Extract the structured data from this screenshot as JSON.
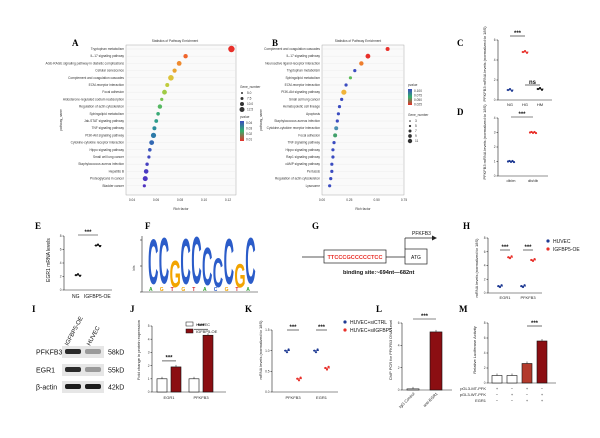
{
  "panels": {
    "A": {
      "label": "A",
      "title": "Statistics of Pathway Enrichment",
      "xlabel": "Rich factor",
      "ylabel": "pathway_name",
      "pathways": [
        "Tryptophan metabolism",
        "IL-17 signaling pathway",
        "AGE-RAGE signaling pathway in diabetic complications",
        "Cellular senescence",
        "Complement and coagulation cascades",
        "ECM-receptor interaction",
        "Focal adhesion",
        "Aldosterone-regulated sodium reabsorption",
        "Regulation of actin cytoskeleton",
        "Sphingolipid metabolism",
        "Jak-STAT signaling pathway",
        "TNF signaling pathway",
        "PI3K-Akt signaling pathway",
        "Cytokine-cytokine receptor interaction",
        "Hippo signaling pathway",
        "Small cell lung cancer",
        "Staphylococcus aureus infection",
        "Hepatitis B",
        "Proteoglycans in cancer",
        "Bladder cancer"
      ],
      "rich": [
        0.145,
        0.095,
        0.088,
        0.083,
        0.079,
        0.075,
        0.072,
        0.069,
        0.067,
        0.065,
        0.063,
        0.061,
        0.06,
        0.058,
        0.056,
        0.055,
        0.053,
        0.052,
        0.051,
        0.05
      ],
      "xticks": [
        "0.04",
        "0.06",
        "0.08",
        "0.10",
        "0.12"
      ],
      "legend_gene_title": "Gene_number",
      "legend_gene": [
        "5.0",
        "7.5",
        "10.0",
        "12.5"
      ],
      "legend_p_title": "pvalue",
      "legend_p": [
        "0.04",
        "0.03",
        "0.02",
        "0.01"
      ]
    },
    "B": {
      "label": "B",
      "title": "Statistics of Pathway Enrichment",
      "xlabel": "Rich factor",
      "ylabel": "pathway_name",
      "pathways": [
        "Complement and coagulation cascades",
        "IL-17 signaling pathway",
        "Neuroactive ligand-receptor interaction",
        "Tryptophan metabolism",
        "Sphingolipid metabolism",
        "ECM-receptor interaction",
        "PI3K-Akt signaling pathway",
        "Small cell lung cancer",
        "Hematopoietic cell lineage",
        "Apoptosis",
        "Staphylococcus aureus infection",
        "Cytokine-cytokine receptor interaction",
        "Focal adhesion",
        "TNF signaling pathway",
        "Hippo signaling pathway",
        "Rap1 signaling pathway",
        "cAMP signaling pathway",
        "Pertussis",
        "Regulation of actin cytoskeleton",
        "Lysosome"
      ],
      "rich": [
        0.6,
        0.42,
        0.36,
        0.3,
        0.26,
        0.22,
        0.2,
        0.18,
        0.16,
        0.15,
        0.14,
        0.13,
        0.12,
        0.11,
        0.1,
        0.1,
        0.09,
        0.09,
        0.08,
        0.07
      ],
      "xticks": [
        "0.00",
        "0.25",
        "0.50",
        "0.75"
      ],
      "legend_gene_title": "Gene_number",
      "legend_gene": [
        "3",
        "5",
        "7",
        "9",
        "11"
      ],
      "legend_p_title": "pvalue",
      "legend_p": [
        "0.100",
        "0.075",
        "0.050",
        "0.025"
      ]
    },
    "C": {
      "label": "C",
      "ylabel": "PFKFB3 mRNA levels (normalized to 18S)",
      "categories": [
        "NG",
        "HG",
        "HM"
      ],
      "means": [
        1.0,
        4.8,
        1.1
      ],
      "yticks": [
        "0",
        "2",
        "4",
        "6"
      ],
      "sig": "***",
      "ns": "ns"
    },
    "D": {
      "label": "D",
      "ylabel": "PFKFB3 mRNA levels (normalized to 18S)",
      "categories": [
        "db/m",
        "db/db"
      ],
      "means": [
        1.0,
        3.0
      ],
      "yticks": [
        "0",
        "1",
        "2",
        "3",
        "4"
      ],
      "sig": "***"
    },
    "E": {
      "label": "E",
      "ylabel": "EGR1 mRNA levels",
      "categories": [
        "NG",
        "IGFBP5-OE"
      ],
      "means": [
        2.2,
        6.6
      ],
      "yticks": [
        "0",
        "2",
        "4",
        "6",
        "8"
      ],
      "sig": "***"
    },
    "F": {
      "label": "F",
      "ylabel": "bits",
      "motif": "CCGCCCCCGC"
    },
    "G": {
      "label": "G",
      "sequence": "TTCCCGCCCCCTCC",
      "gene": "PFKFB3",
      "start": "ATG",
      "binding_site": "binding site:~694nt—682nt"
    },
    "H": {
      "label": "H",
      "ylabel": "mRNA levels (normalized to 18S)",
      "legend": [
        "HUVEC",
        "IGFBP5-OE"
      ],
      "colors": [
        "#1f3a93",
        "#e8302a"
      ],
      "categories": [
        "EGR1",
        "PFKFB3"
      ],
      "series": [
        {
          "name": "HUVEC",
          "values": [
            1.0,
            1.0
          ]
        },
        {
          "name": "IGFBP5-OE",
          "values": [
            5.2,
            4.8
          ]
        }
      ],
      "yticks": [
        "0",
        "2",
        "4",
        "6",
        "8"
      ],
      "sig": [
        "***",
        "***"
      ]
    },
    "I": {
      "label": "I",
      "lanes": [
        "IGFBP5-OE",
        "HUVEC"
      ],
      "rows": [
        {
          "name": "PFKFB3",
          "kda": "58kD"
        },
        {
          "name": "EGR1",
          "kda": "55kD"
        },
        {
          "name": "β-actin",
          "kda": "42kD"
        }
      ]
    },
    "J": {
      "label": "J",
      "ylabel": "Fold change in protein expression",
      "legend": [
        "HUVEC",
        "IGFBP5-OE"
      ],
      "categories": [
        "EGR1",
        "PFKFB3"
      ],
      "series": [
        {
          "name": "HUVEC",
          "values": [
            1.0,
            1.0
          ]
        },
        {
          "name": "IGFBP5-OE",
          "values": [
            1.9,
            4.3
          ]
        }
      ],
      "yticks": [
        "0",
        "1",
        "2",
        "3",
        "4",
        "5"
      ],
      "sig": [
        "***",
        "***"
      ]
    },
    "K": {
      "label": "K",
      "ylabel": "mRNA levels (normalized to 18S)",
      "legend": [
        "HUVEC+siCTRL",
        "HUVEC+siIGFBP5"
      ],
      "colors": [
        "#1f3a93",
        "#e8302a"
      ],
      "categories": [
        "PFKFB3",
        "EGR1"
      ],
      "series": [
        {
          "name": "HUVEC+siCTRL",
          "values": [
            1.0,
            1.0
          ]
        },
        {
          "name": "HUVEC+siIGFBP5",
          "values": [
            0.32,
            0.58
          ]
        }
      ],
      "yticks": [
        "0.0",
        "0.5",
        "1.0",
        "1.5"
      ],
      "sig": [
        "***",
        "***"
      ]
    },
    "L": {
      "label": "L",
      "ylabel": "ChIP PCR for PFKFB3 DNA Level",
      "categories": [
        "IgG Control",
        "anti-EGR1"
      ],
      "values": [
        0.1,
        5.2
      ],
      "yticks": [
        "0",
        "2",
        "4",
        "6"
      ],
      "sig": "***"
    },
    "M": {
      "label": "M",
      "ylabel": "Relative Luciferase Activity",
      "categories": [
        "1",
        "2",
        "3",
        "4"
      ],
      "values": [
        1.0,
        1.0,
        2.6,
        5.6
      ],
      "yticks": [
        "0",
        "2",
        "4",
        "6",
        "8"
      ],
      "sig": "***",
      "row_labels": [
        "pGL3-MT-PFK",
        "pGL3-WT-PFK",
        "EGR1"
      ],
      "row_signs": [
        [
          "+",
          "−",
          "+",
          "−"
        ],
        [
          "−",
          "+",
          "−",
          "+"
        ],
        [
          "−",
          "−",
          "+",
          "+"
        ]
      ]
    }
  },
  "chart_data": [
    {
      "type": "scatter",
      "title": "Statistics of Pathway Enrichment",
      "xlabel": "Rich factor",
      "ylabel": "pathway_name",
      "panel": "A"
    },
    {
      "type": "scatter",
      "title": "Statistics of Pathway Enrichment",
      "xlabel": "Rich factor",
      "ylabel": "pathway_name",
      "panel": "B"
    },
    {
      "type": "scatter",
      "categories": [
        "NG",
        "HG",
        "HM"
      ],
      "values": [
        1.0,
        4.8,
        1.1
      ],
      "ylim": [
        0,
        6
      ],
      "panel": "C"
    },
    {
      "type": "scatter",
      "categories": [
        "db/m",
        "db/db"
      ],
      "values": [
        1.0,
        3.0
      ],
      "ylim": [
        0,
        4
      ],
      "panel": "D"
    },
    {
      "type": "scatter",
      "categories": [
        "NG",
        "IGFBP5-OE"
      ],
      "values": [
        2.2,
        6.6
      ],
      "ylim": [
        0,
        8
      ],
      "panel": "E"
    },
    {
      "type": "scatter",
      "categories": [
        "EGR1",
        "PFKFB3"
      ],
      "series": [
        {
          "name": "HUVEC",
          "values": [
            1.0,
            1.0
          ]
        },
        {
          "name": "IGFBP5-OE",
          "values": [
            5.2,
            4.8
          ]
        }
      ],
      "ylim": [
        0,
        8
      ],
      "panel": "H"
    },
    {
      "type": "bar",
      "categories": [
        "EGR1",
        "PFKFB3"
      ],
      "series": [
        {
          "name": "HUVEC",
          "values": [
            1.0,
            1.0
          ]
        },
        {
          "name": "IGFBP5-OE",
          "values": [
            1.9,
            4.3
          ]
        }
      ],
      "ylim": [
        0,
        5
      ],
      "panel": "J"
    },
    {
      "type": "scatter",
      "categories": [
        "PFKFB3",
        "EGR1"
      ],
      "series": [
        {
          "name": "HUVEC+siCTRL",
          "values": [
            1.0,
            1.0
          ]
        },
        {
          "name": "HUVEC+siIGFBP5",
          "values": [
            0.32,
            0.58
          ]
        }
      ],
      "ylim": [
        0,
        1.5
      ],
      "panel": "K"
    },
    {
      "type": "bar",
      "categories": [
        "IgG Control",
        "anti-EGR1"
      ],
      "values": [
        0.1,
        5.2
      ],
      "ylim": [
        0,
        6
      ],
      "panel": "L"
    },
    {
      "type": "bar",
      "categories": [
        "1",
        "2",
        "3",
        "4"
      ],
      "values": [
        1.0,
        1.0,
        2.6,
        5.6
      ],
      "ylim": [
        0,
        8
      ],
      "panel": "M"
    }
  ]
}
